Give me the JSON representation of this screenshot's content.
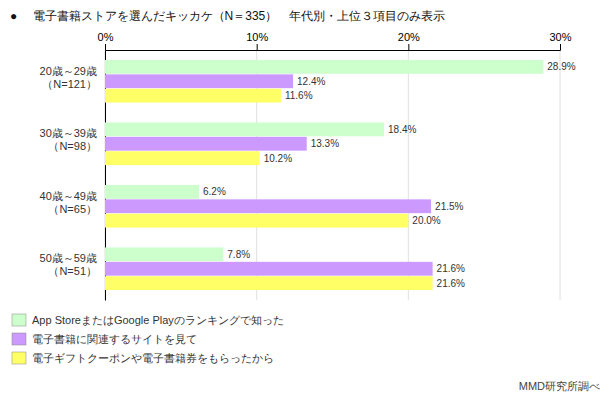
{
  "chart_data": {
    "type": "bar",
    "orientation": "horizontal",
    "title": "● 　電子書籍ストアを選んだキッカケ（N＝335）　年代別・上位３項目のみ表示",
    "categories": [
      "20歳～29歳\n（N=121）",
      "30歳～39歳\n（N=98）",
      "40歳～49歳\n（N=65）",
      "50歳～59歳\n（N=51）"
    ],
    "series": [
      {
        "name": "App StoreまたはGoogle Playのランキングで知った",
        "color": "#ccffcc",
        "values": [
          28.9,
          18.4,
          6.2,
          7.8
        ],
        "value_labels": [
          "28.9%",
          "18.4%",
          "6.2%",
          "7.8%"
        ]
      },
      {
        "name": "電子書籍に関連するサイトを見て",
        "color": "#cc99ff",
        "values": [
          12.4,
          13.3,
          21.5,
          21.6
        ],
        "value_labels": [
          "12.4%",
          "13.3%",
          "21.5%",
          "21.6%"
        ]
      },
      {
        "name": "電子ギフトクーポンや電子書籍券をもらったから",
        "color": "#ffff66",
        "values": [
          11.6,
          10.2,
          20.0,
          21.6
        ],
        "value_labels": [
          "11.6%",
          "10.2%",
          "20.0%",
          "21.6%"
        ]
      }
    ],
    "xlim": [
      0,
      30
    ],
    "xticks": [
      {
        "value": 0,
        "label": "0%"
      },
      {
        "value": 10,
        "label": "10%"
      },
      {
        "value": 20,
        "label": "20%"
      },
      {
        "value": 30,
        "label": "30%"
      }
    ],
    "grid": true,
    "data_labels": true,
    "legend": "bottom",
    "annotations": [
      "MMD研究所調べ"
    ]
  }
}
